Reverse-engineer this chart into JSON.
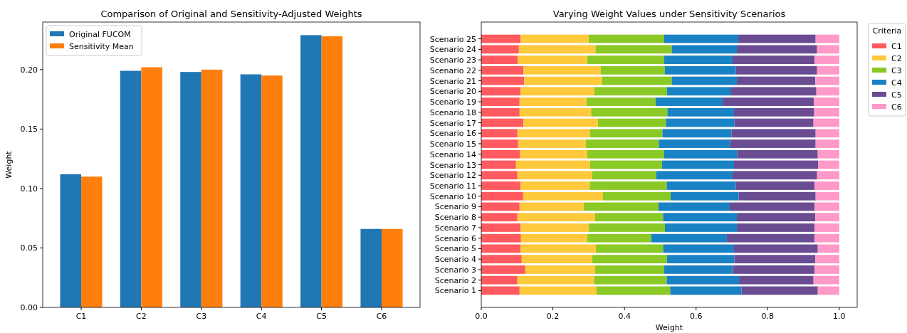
{
  "chart_data": [
    {
      "type": "bar",
      "title": "Comparison of Original and Sensitivity-Adjusted Weights",
      "ylabel": "Weight",
      "categories": [
        "C1",
        "C2",
        "C3",
        "C4",
        "C5",
        "C6"
      ],
      "series": [
        {
          "name": "Original FUCOM",
          "color": "#1f77b4",
          "values": [
            0.112,
            0.199,
            0.198,
            0.196,
            0.229,
            0.066
          ]
        },
        {
          "name": "Sensitivity Mean",
          "color": "#ff7f0e",
          "values": [
            0.11,
            0.202,
            0.2,
            0.195,
            0.228,
            0.066
          ]
        }
      ],
      "ylim": [
        0,
        0.24
      ],
      "yticks": [
        {
          "value": 0,
          "label": "0.00"
        },
        {
          "value": 0.05,
          "label": "0.05"
        },
        {
          "value": 0.1,
          "label": "0.10"
        },
        {
          "value": 0.15,
          "label": "0.15"
        },
        {
          "value": 0.2,
          "label": "0.20"
        }
      ],
      "legend": "top left"
    },
    {
      "type": "bar",
      "title": "Varying Weight Values under Sensitivity Scenarios",
      "xlabel": "Weight",
      "legend_title": "Criteria",
      "orientation": "horizontal",
      "stacked": true,
      "legend": "right",
      "categories": [
        "Scenario 25",
        "Scenario 24",
        "Scenario 23",
        "Scenario 22",
        "Scenario 21",
        "Scenario 20",
        "Scenario 19",
        "Scenario 18",
        "Scenario 17",
        "Scenario 16",
        "Scenario 15",
        "Scenario 14",
        "Scenario 13",
        "Scenario 12",
        "Scenario 11",
        "Scenario 10",
        "Scenario 9",
        "Scenario 8",
        "Scenario 7",
        "Scenario 6",
        "Scenario 5",
        "Scenario 4",
        "Scenario 3",
        "Scenario 2",
        "Scenario 1"
      ],
      "series": [
        {
          "name": "C1",
          "color": "#ff5a5f",
          "values": [
            0.11,
            0.105,
            0.102,
            0.118,
            0.12,
            0.11,
            0.107,
            0.107,
            0.118,
            0.101,
            0.103,
            0.108,
            0.097,
            0.101,
            0.11,
            0.117,
            0.107,
            0.101,
            0.11,
            0.111,
            0.11,
            0.113,
            0.123,
            0.101,
            0.107
          ]
        },
        {
          "name": "C2",
          "color": "#ffc93c",
          "values": [
            0.19,
            0.214,
            0.194,
            0.216,
            0.217,
            0.206,
            0.187,
            0.2,
            0.208,
            0.203,
            0.189,
            0.188,
            0.207,
            0.209,
            0.193,
            0.223,
            0.179,
            0.217,
            0.19,
            0.185,
            0.21,
            0.197,
            0.195,
            0.214,
            0.215
          ]
        },
        {
          "name": "C3",
          "color": "#8ac926",
          "values": [
            0.211,
            0.213,
            0.215,
            0.179,
            0.195,
            0.203,
            0.193,
            0.213,
            0.19,
            0.202,
            0.204,
            0.215,
            0.201,
            0.179,
            0.215,
            0.189,
            0.209,
            0.19,
            0.213,
            0.179,
            0.188,
            0.209,
            0.193,
            0.203,
            0.206
          ]
        },
        {
          "name": "C4",
          "color": "#1982c4",
          "values": [
            0.207,
            0.182,
            0.191,
            0.198,
            0.182,
            0.179,
            0.187,
            0.186,
            0.191,
            0.193,
            0.199,
            0.204,
            0.201,
            0.213,
            0.193,
            0.19,
            0.199,
            0.206,
            0.201,
            0.211,
            0.198,
            0.188,
            0.192,
            0.202,
            0.199
          ]
        },
        {
          "name": "C5",
          "color": "#6a4c93",
          "values": [
            0.216,
            0.224,
            0.229,
            0.227,
            0.219,
            0.238,
            0.255,
            0.224,
            0.221,
            0.235,
            0.239,
            0.225,
            0.235,
            0.236,
            0.22,
            0.215,
            0.237,
            0.219,
            0.217,
            0.245,
            0.234,
            0.226,
            0.228,
            0.208,
            0.213
          ]
        },
        {
          "name": "C6",
          "color": "#ff99c8",
          "values": [
            0.066,
            0.062,
            0.069,
            0.062,
            0.067,
            0.064,
            0.071,
            0.07,
            0.072,
            0.066,
            0.066,
            0.06,
            0.059,
            0.062,
            0.069,
            0.066,
            0.069,
            0.067,
            0.069,
            0.069,
            0.06,
            0.067,
            0.069,
            0.072,
            0.06
          ]
        }
      ],
      "xlim": [
        0,
        1.05
      ],
      "xticks": [
        {
          "value": 0,
          "label": "0.0"
        },
        {
          "value": 0.2,
          "label": "0.2"
        },
        {
          "value": 0.4,
          "label": "0.4"
        },
        {
          "value": 0.6,
          "label": "0.6"
        },
        {
          "value": 0.8,
          "label": "0.8"
        },
        {
          "value": 1,
          "label": "1.0"
        }
      ]
    }
  ]
}
